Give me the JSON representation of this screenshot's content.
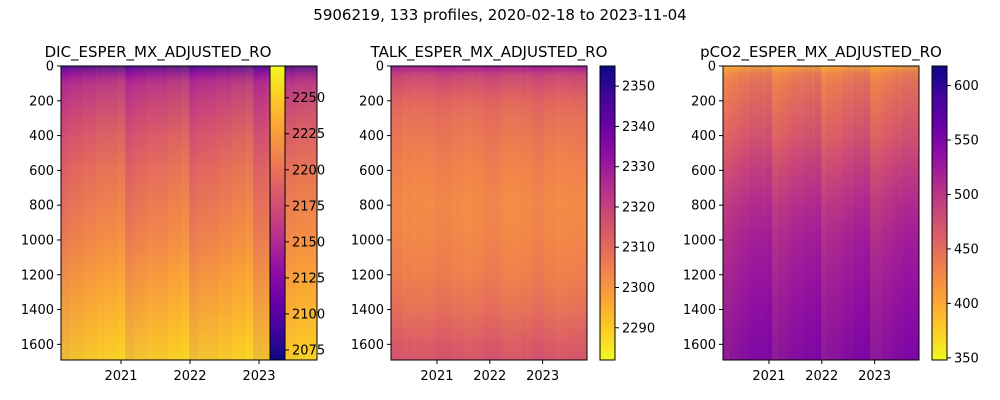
{
  "figure": {
    "title": "5906219, 133 profiles, 2020-02-18 to 2023-11-04"
  },
  "chart_data": [
    {
      "type": "heatmap",
      "title": "DIC_ESPER_MX_ADJUSTED_RO",
      "colormap": "plasma",
      "colormap_reversed": false,
      "x_range": [
        2020.13,
        2023.84
      ],
      "x_ticks": [
        "2021",
        "2022",
        "2023"
      ],
      "x_tick_values": [
        2021,
        2022,
        2023
      ],
      "y_range": [
        1690,
        0
      ],
      "y_inverted": true,
      "y_ticks": [
        "0",
        "200",
        "400",
        "600",
        "800",
        "1000",
        "1200",
        "1400",
        "1600"
      ],
      "y_tick_values": [
        0,
        200,
        400,
        600,
        800,
        1000,
        1200,
        1400,
        1600
      ],
      "colorbar_range": [
        2068,
        2272
      ],
      "colorbar_ticks": [
        "2075",
        "2100",
        "2125",
        "2150",
        "2175",
        "2200",
        "2225",
        "2250"
      ],
      "colorbar_tick_values": [
        2075,
        2100,
        2125,
        2150,
        2175,
        2200,
        2225,
        2250
      ],
      "depth_profile": {
        "depths": [
          0,
          50,
          100,
          200,
          300,
          400,
          600,
          800,
          1000,
          1200,
          1400,
          1600,
          1690
        ],
        "values": [
          2085,
          2130,
          2148,
          2160,
          2170,
          2180,
          2195,
          2205,
          2215,
          2228,
          2240,
          2252,
          2258
        ]
      }
    },
    {
      "type": "heatmap",
      "title": "TALK_ESPER_MX_ADJUSTED_RO",
      "colormap": "plasma",
      "colormap_reversed": true,
      "x_range": [
        2020.13,
        2023.84
      ],
      "x_ticks": [
        "2021",
        "2022",
        "2023"
      ],
      "x_tick_values": [
        2021,
        2022,
        2023
      ],
      "y_range": [
        1690,
        0
      ],
      "y_inverted": true,
      "y_ticks": [
        "0",
        "200",
        "400",
        "600",
        "800",
        "1000",
        "1200",
        "1400",
        "1600"
      ],
      "y_tick_values": [
        0,
        200,
        400,
        600,
        800,
        1000,
        1200,
        1400,
        1600
      ],
      "colorbar_range": [
        2282,
        2355
      ],
      "colorbar_ticks": [
        "2290",
        "2300",
        "2310",
        "2320",
        "2330",
        "2340",
        "2350"
      ],
      "colorbar_tick_values": [
        2290,
        2300,
        2310,
        2320,
        2330,
        2340,
        2350
      ],
      "depth_profile": {
        "depths": [
          0,
          50,
          100,
          200,
          300,
          400,
          600,
          800,
          1000,
          1200,
          1400,
          1600,
          1690
        ],
        "values": [
          2334,
          2322,
          2318,
          2312,
          2309,
          2307,
          2304,
          2302,
          2303,
          2305,
          2309,
          2315,
          2317
        ]
      }
    },
    {
      "type": "heatmap",
      "title": "pCO2_ESPER_MX_ADJUSTED_RO",
      "colormap": "plasma",
      "colormap_reversed": true,
      "x_range": [
        2020.13,
        2023.84
      ],
      "x_ticks": [
        "2021",
        "2022",
        "2023"
      ],
      "x_tick_values": [
        2021,
        2022,
        2023
      ],
      "y_range": [
        1690,
        0
      ],
      "y_inverted": true,
      "y_ticks": [
        "0",
        "200",
        "400",
        "600",
        "800",
        "1000",
        "1200",
        "1400",
        "1600"
      ],
      "y_tick_values": [
        0,
        200,
        400,
        600,
        800,
        1000,
        1200,
        1400,
        1600
      ],
      "colorbar_range": [
        348,
        618
      ],
      "colorbar_ticks": [
        "350",
        "400",
        "450",
        "500",
        "550",
        "600"
      ],
      "colorbar_tick_values": [
        350,
        400,
        450,
        500,
        550,
        600
      ],
      "depth_profile": {
        "depths": [
          0,
          50,
          100,
          200,
          300,
          400,
          600,
          800,
          1000,
          1200,
          1400,
          1600,
          1690
        ],
        "values": [
          390,
          420,
          430,
          440,
          450,
          460,
          485,
          505,
          520,
          530,
          540,
          550,
          552
        ]
      }
    }
  ]
}
